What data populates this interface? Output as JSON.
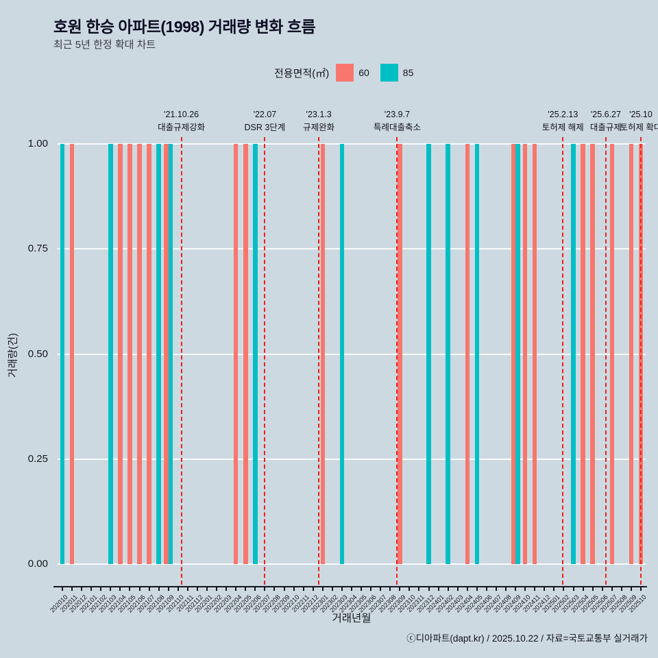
{
  "header": {
    "title": "호원 한승 아파트(1998) 거래량 변화 흐름",
    "subtitle": "최근 5년 한정 확대 차트"
  },
  "legend": {
    "title": "전용면적(㎡)",
    "items": [
      {
        "label": "60",
        "color": "#f8766d"
      },
      {
        "label": "85",
        "color": "#00bfc4"
      }
    ]
  },
  "chart_data": {
    "type": "bar",
    "title": "호원 한승 아파트(1998) 거래량 변화 흐름",
    "xlabel": "거래년월",
    "ylabel": "거래량(건)",
    "ylim": [
      0,
      1.05
    ],
    "grid": "horizontal-white",
    "bar_value": 1,
    "y_ticks": [
      {
        "value": 0,
        "label": "0.00"
      },
      {
        "value": 0.25,
        "label": "0.25"
      },
      {
        "value": 0.5,
        "label": "0.50"
      },
      {
        "value": 0.75,
        "label": "0.75"
      },
      {
        "value": 1,
        "label": "1.00"
      }
    ],
    "categories": [
      "202010",
      "202011",
      "202012",
      "202101",
      "202102",
      "202103",
      "202104",
      "202105",
      "202106",
      "202107",
      "202108",
      "202109",
      "202110",
      "202111",
      "202112",
      "202201",
      "202202",
      "202203",
      "202204",
      "202205",
      "202206",
      "202207",
      "202208",
      "202209",
      "202210",
      "202211",
      "202212",
      "202301",
      "202302",
      "202303",
      "202304",
      "202305",
      "202306",
      "202307",
      "202308",
      "202309",
      "202310",
      "202311",
      "202312",
      "202401",
      "202402",
      "202403",
      "202404",
      "202405",
      "202406",
      "202407",
      "202408",
      "202409",
      "202410",
      "202411",
      "202412",
      "202501",
      "202502",
      "202503",
      "202504",
      "202505",
      "202506",
      "202507",
      "202508",
      "202509",
      "202510"
    ],
    "series": [
      {
        "name": "60",
        "color": "#f8766d",
        "months_with_value_1": [
          "202011",
          "202104",
          "202105",
          "202106",
          "202107",
          "202109",
          "202204",
          "202205",
          "202301",
          "202309",
          "202404",
          "202409",
          "202410",
          "202411",
          "202504",
          "202505",
          "202507",
          "202509",
          "202510"
        ]
      },
      {
        "name": "85",
        "color": "#00bfc4",
        "months_with_value_1": [
          "202010",
          "202103",
          "202108",
          "202109",
          "202206",
          "202303",
          "202312",
          "202402",
          "202405",
          "202409",
          "202503"
        ]
      }
    ],
    "annotation_line_color": "#f01d1d",
    "annotations": [
      {
        "date_label": "'21.10.26",
        "text": "대출규제강화",
        "month": "202110",
        "day": 26
      },
      {
        "date_label": "'22.07",
        "text": "DSR 3단계",
        "month": "202207",
        "day": null
      },
      {
        "date_label": "'23.1.3",
        "text": "규제완화",
        "month": "202301",
        "day": 3
      },
      {
        "date_label": "'23.9.7",
        "text": "특례대출축소",
        "month": "202309",
        "day": 7
      },
      {
        "date_label": "'25.2.13",
        "text": "토허제 해제",
        "month": "202502",
        "day": 13
      },
      {
        "date_label": "'25.6.27",
        "text": "대출규제",
        "month": "202506",
        "day": 27
      },
      {
        "date_label": "'25.10",
        "text": "토허제 확대",
        "month": "202510",
        "day": null
      }
    ]
  },
  "footer": {
    "credit": "ⓒ디아파트(dapt.kr) / 2025.10.22 / 자료=국토교통부 실거래가"
  },
  "colors": {
    "background": "#cdd9e1",
    "series_60": "#f8766d",
    "series_85": "#00bfc4",
    "event_line": "#f01d1d"
  }
}
